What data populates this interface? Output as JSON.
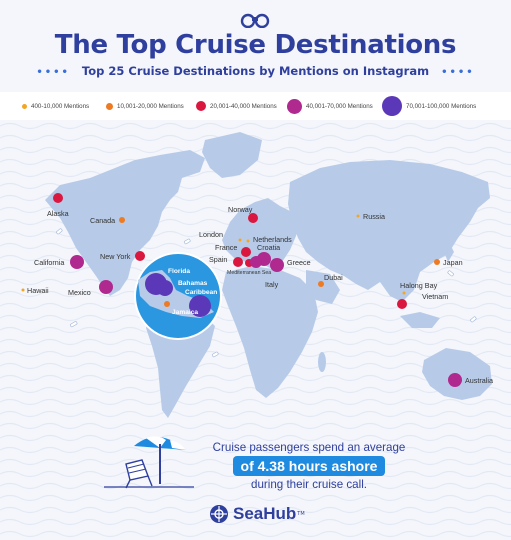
{
  "header": {
    "title": "The Top Cruise Destinations",
    "subtitle": "Top 25 Cruise Destinations by Mentions on Instagram",
    "icon": "binoculars-icon"
  },
  "legend": [
    {
      "label": "400-10,000 Mentions",
      "color": "#f2a623"
    },
    {
      "label": "10,001-20,000 Mentions",
      "color": "#ee7a22"
    },
    {
      "label": "20,001-40,000 Mentions",
      "color": "#d9173f"
    },
    {
      "label": "40,001-70,000 Mentions",
      "color": "#b0298f"
    },
    {
      "label": "70,001-100,000 Mentions",
      "color": "#5a38b8"
    }
  ],
  "destinations": [
    {
      "name": "Alaska",
      "tier": 2
    },
    {
      "name": "Canada",
      "tier": 1
    },
    {
      "name": "California",
      "tier": 3
    },
    {
      "name": "Hawaii",
      "tier": 0
    },
    {
      "name": "New York",
      "tier": 2
    },
    {
      "name": "Mexico",
      "tier": 3
    },
    {
      "name": "Florida",
      "tier": 4
    },
    {
      "name": "Bahamas",
      "tier": 4
    },
    {
      "name": "Caribbean",
      "tier": 4
    },
    {
      "name": "Jamaica",
      "tier": 1
    },
    {
      "name": "Norway",
      "tier": 2
    },
    {
      "name": "London",
      "tier": 0
    },
    {
      "name": "Netherlands",
      "tier": 0
    },
    {
      "name": "France",
      "tier": 2
    },
    {
      "name": "Croatia",
      "tier": 3
    },
    {
      "name": "Spain",
      "tier": 2
    },
    {
      "name": "Mediterranean Sea",
      "tier": 2
    },
    {
      "name": "Italy",
      "tier": 3
    },
    {
      "name": "Greece",
      "tier": 3
    },
    {
      "name": "Russia",
      "tier": 0
    },
    {
      "name": "Dubai",
      "tier": 1
    },
    {
      "name": "Japan",
      "tier": 1
    },
    {
      "name": "Halong Bay",
      "tier": 0
    },
    {
      "name": "Vietnam",
      "tier": 2
    },
    {
      "name": "Australia",
      "tier": 3
    }
  ],
  "fact": {
    "line1": "Cruise passengers spend an average",
    "highlight": "of 4.38 hours ashore",
    "line3": "during their cruise call."
  },
  "brand": {
    "name": "SeaHub",
    "tm": "TM",
    "icon": "ship-wheel-icon"
  },
  "colors": {
    "title": "#2f3f9e",
    "land": "#b7cbe9",
    "inset_sea": "#2a97e0",
    "highlight": "#1f8be0"
  }
}
